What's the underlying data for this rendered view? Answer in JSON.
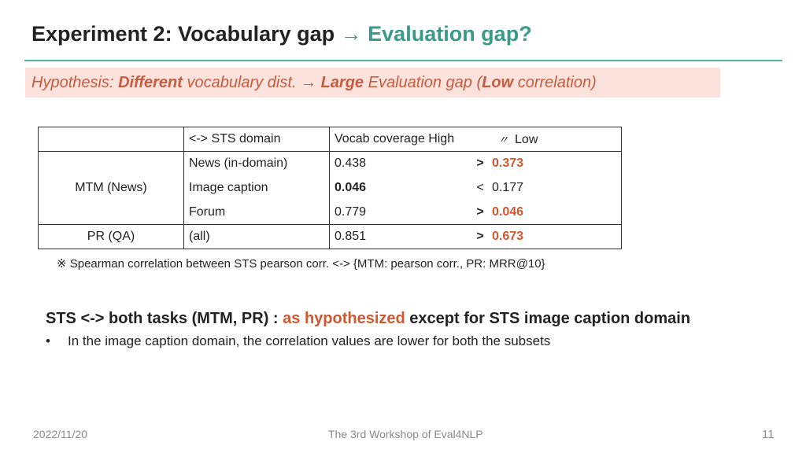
{
  "title": {
    "main": "Experiment 2: Vocabulary gap",
    "arrow": "→",
    "accent": "Evaluation gap?"
  },
  "hypothesis": {
    "prefix": "Hypothesis: ",
    "w1": "Different",
    "t1": " vocabulary dist. ",
    "arrow": "→ ",
    "w2": "Large",
    "t2": " Evaluation gap (",
    "w3": "Low",
    "t3": " correlation)"
  },
  "table": {
    "header": {
      "col0": "",
      "col1": "<-> STS domain",
      "high": "Vocab coverage High",
      "ditto": "〃",
      "low": "Low"
    },
    "groups": [
      {
        "task": "MTM (News)",
        "rows": [
          {
            "domain": "News (in-domain)",
            "high": "0.438",
            "cmp": ">",
            "low": "0.373"
          },
          {
            "domain": "Image caption",
            "high": "0.046",
            "cmp": "<",
            "low": "0.177"
          },
          {
            "domain": "Forum",
            "high": "0.779",
            "cmp": ">",
            "low": "0.046"
          }
        ]
      },
      {
        "task": "PR (QA)",
        "rows": [
          {
            "domain": "(all)",
            "high": "0.851",
            "cmp": ">",
            "low": "0.673"
          }
        ]
      }
    ]
  },
  "note": "※ Spearman correlation between STS pearson corr. <-> {MTM: pearson corr., PR: MRR@10}",
  "summary": {
    "part1": "STS <-> both tasks (MTM, PR) : ",
    "highlight": "as hypothesized",
    "part2": " except for STS image caption domain"
  },
  "bullet": {
    "symbol": "•",
    "text": "In the image caption domain, the correlation values are lower for both the subsets"
  },
  "footer": {
    "date": "2022/11/20",
    "event": "The 3rd Workshop of Eval4NLP",
    "page": "11"
  },
  "colors": {
    "accent_teal": "#3a9a8a",
    "highlight_red": "#d0572f",
    "hypothesis_bg": "#fbe2dc"
  }
}
